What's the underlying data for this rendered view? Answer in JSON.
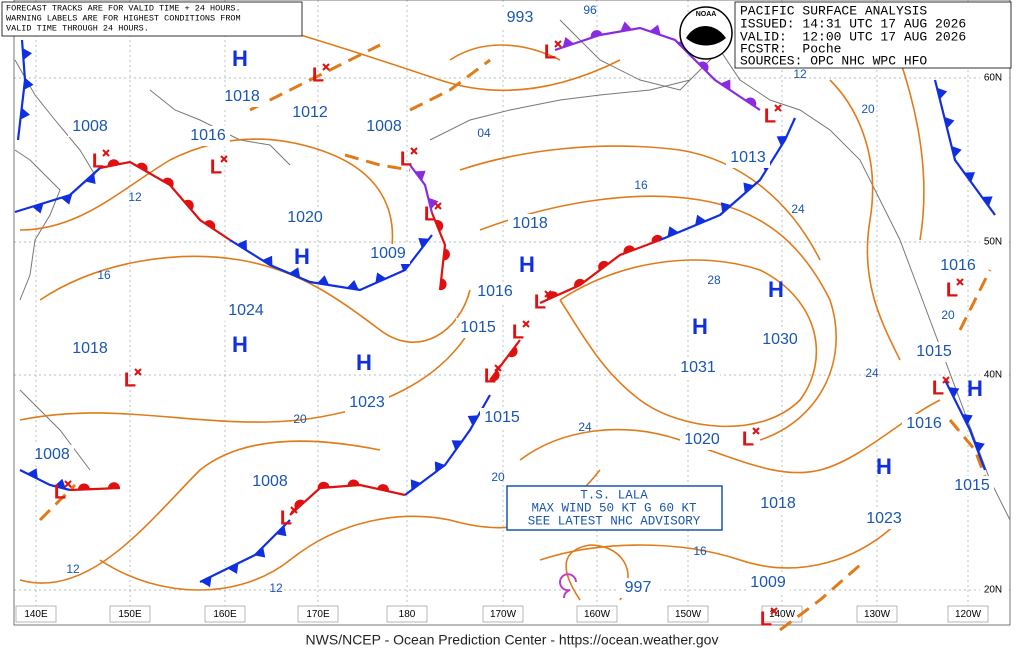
{
  "notice": [
    "FORECAST TRACKS ARE FOR VALID TIME + 24 HOURS.",
    "WARNING LABELS ARE FOR HIGHEST CONDITIONS FROM",
    "VALID TIME THROUGH 24 HOURS."
  ],
  "header": {
    "title": "PACIFIC SURFACE ANALYSIS",
    "issued": "ISSUED: 14:31 UTC 17 AUG 2026",
    "valid": "VALID:  12:00 UTC 17 AUG 2026",
    "forecaster": "FCSTR:  Poche",
    "sources": "SOURCES: OPC NHC WPC HFO"
  },
  "logo": "NOAA",
  "advisory": [
    "T.S. LALA",
    "MAX WIND 50 KT G 60 KT",
    "SEE LATEST NHC ADVISORY"
  ],
  "pressure_labels": [
    "1008",
    "1018",
    "1012",
    "1008",
    "1016",
    "1020",
    "1009",
    "1024",
    "1018",
    "1023",
    "1018",
    "1016",
    "1015",
    "1015",
    "1013",
    "1030",
    "1031",
    "1020",
    "1018",
    "1023",
    "1009",
    "1008",
    "1008",
    "1016",
    "1015",
    "1016",
    "1015",
    "993",
    "997"
  ],
  "high_labels": [
    "H",
    "H",
    "H",
    "H",
    "H",
    "H",
    "H",
    "H",
    "H"
  ],
  "low_labels": [
    "L",
    "L",
    "L",
    "L",
    "L",
    "L",
    "L",
    "L",
    "L",
    "L",
    "L",
    "L",
    "L",
    "L",
    "L",
    "L",
    "L"
  ],
  "isobar_labels": [
    "12",
    "16",
    "20",
    "24",
    "28",
    "04",
    "16",
    "20",
    "16",
    "12",
    "12",
    "20",
    "24",
    "24",
    "20",
    "12",
    "96"
  ],
  "longitude_labels": [
    "140E",
    "150E",
    "160E",
    "170E",
    "180",
    "170W",
    "160W",
    "150W",
    "140W",
    "130W",
    "120W"
  ],
  "latitude_labels": [
    "60N",
    "50N",
    "40N",
    "20N"
  ],
  "footer": "NWS/NCEP - Ocean Prediction Center - https://ocean.weather.gov"
}
